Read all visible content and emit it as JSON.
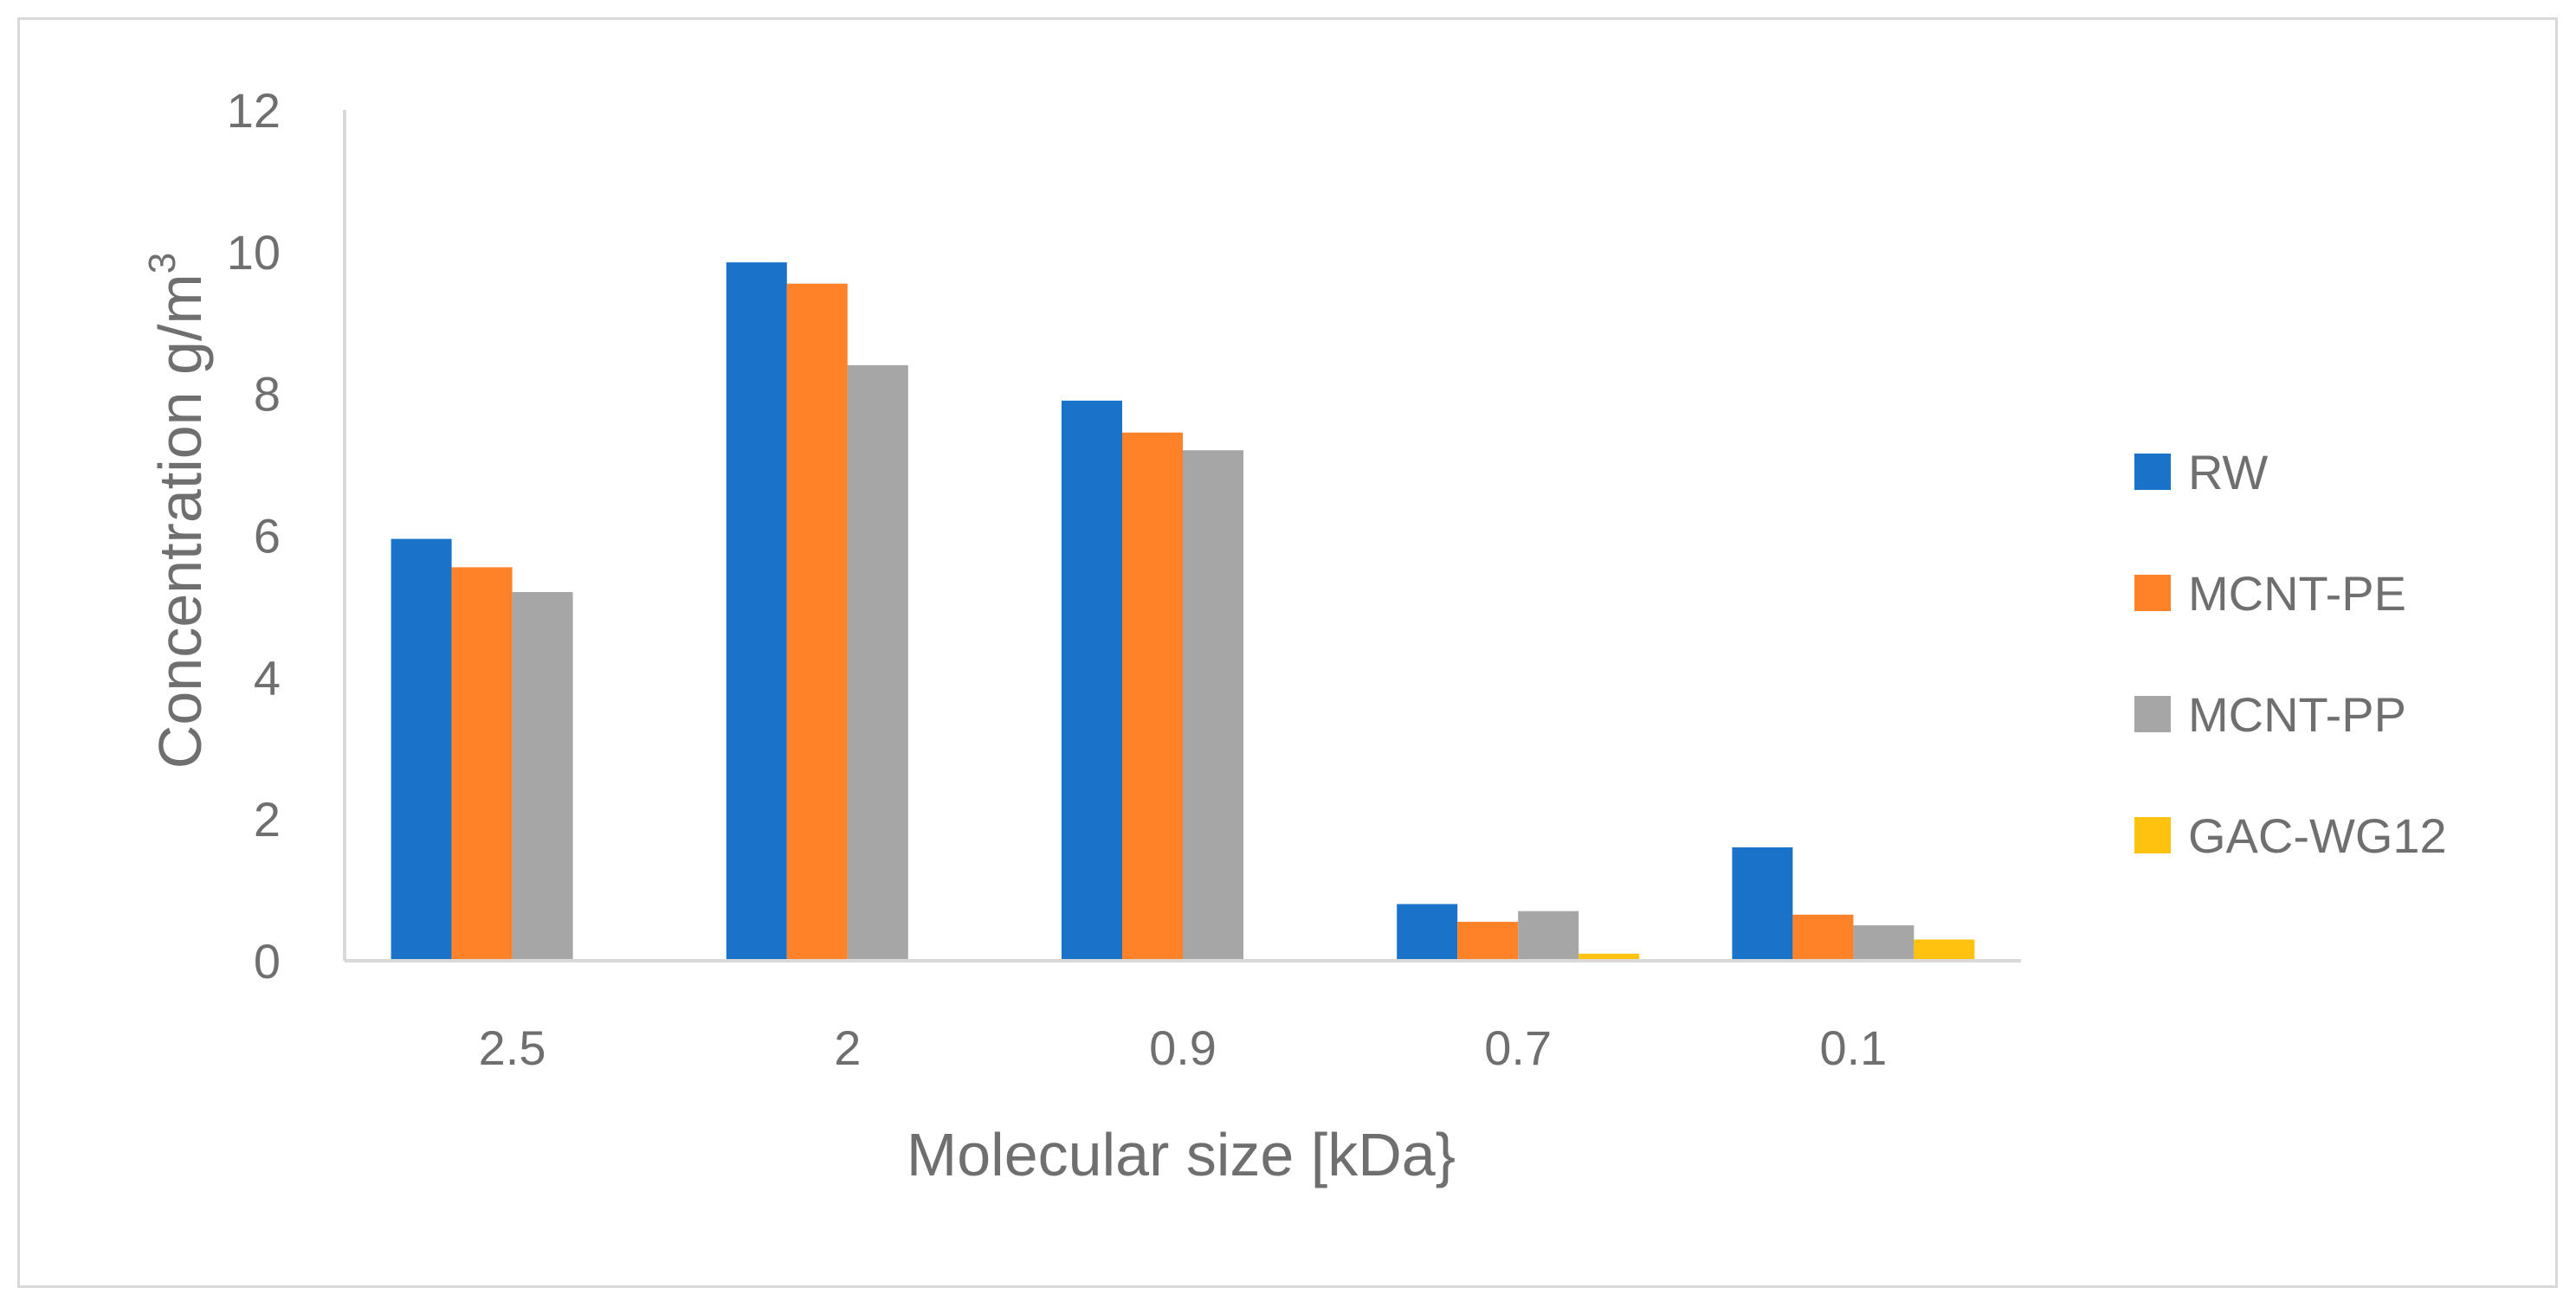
{
  "chart_data": {
    "type": "bar",
    "categories": [
      "2.5",
      "2",
      "0.9",
      "0.7",
      "0.1"
    ],
    "series": [
      {
        "name": "RW",
        "color": "#1b73c9",
        "values": [
          5.95,
          9.85,
          7.9,
          0.8,
          1.6
        ]
      },
      {
        "name": "MCNT-PE",
        "color": "#ff8228",
        "values": [
          5.55,
          9.55,
          7.45,
          0.55,
          0.65
        ]
      },
      {
        "name": "MCNT-PP",
        "color": "#a6a6a6",
        "values": [
          5.2,
          8.4,
          7.2,
          0.7,
          0.5
        ]
      },
      {
        "name": "GAC-WG12",
        "color": "#ffc20e",
        "values": [
          0,
          0,
          0,
          0.1,
          0.3
        ]
      }
    ],
    "xlabel": "Molecular size [kDa}",
    "ylabel_main": "Concentration g/m",
    "ylabel_superscript": "3",
    "ylim": [
      0,
      12
    ],
    "yticks": [
      "0",
      "2",
      "4",
      "6",
      "8",
      "10",
      "12"
    ],
    "grid": false,
    "legend_position": "right"
  }
}
